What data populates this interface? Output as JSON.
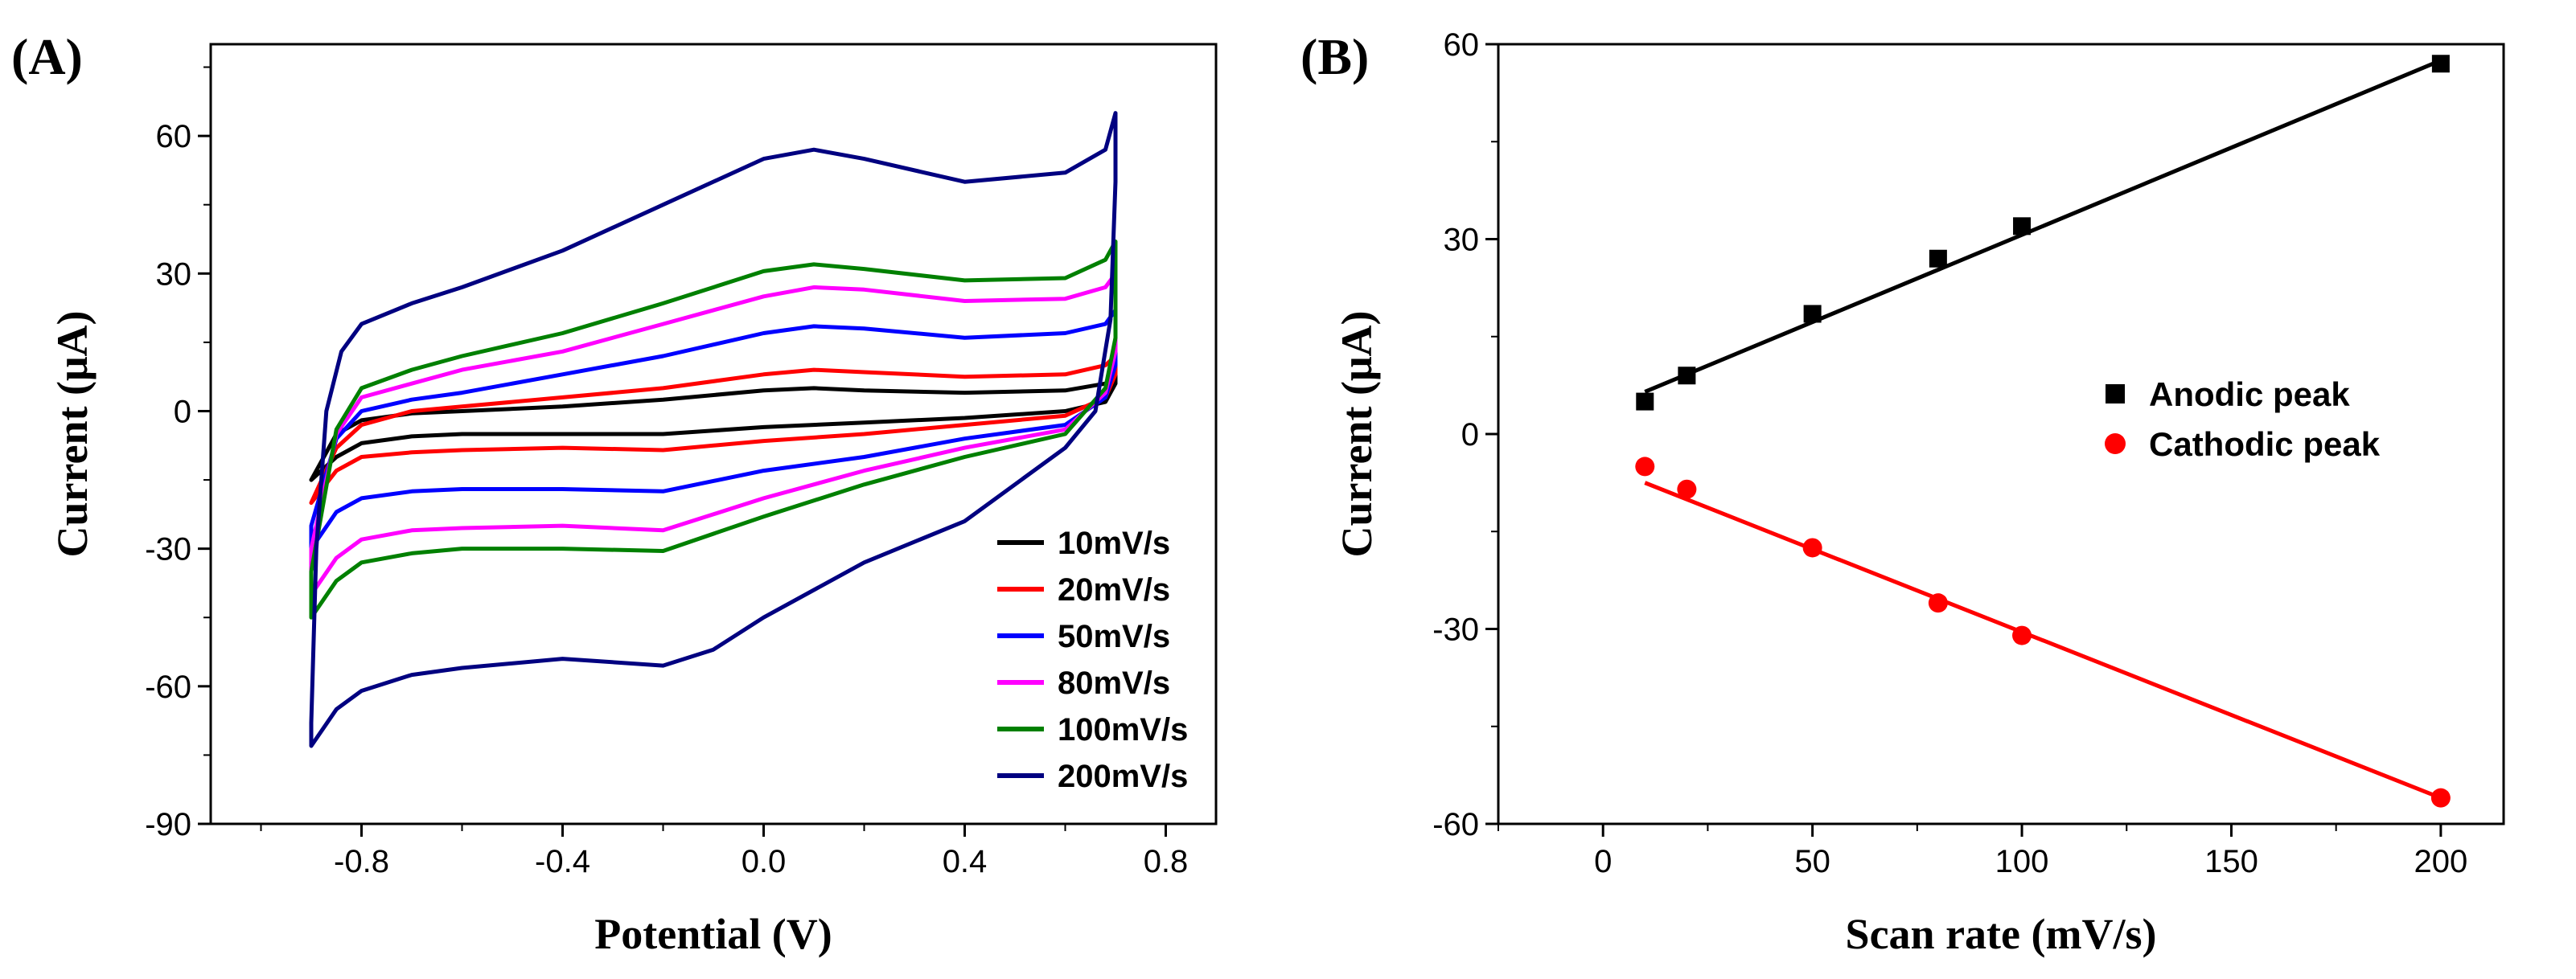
{
  "chart_data": [
    {
      "type": "line",
      "panel_label": "(A)",
      "xlabel": "Potential (V)",
      "ylabel": "Current (μA)",
      "xlim": [
        -1.1,
        0.9
      ],
      "ylim": [
        -90,
        80
      ],
      "xticks": [
        -0.8,
        -0.4,
        0.0,
        0.4,
        0.8
      ],
      "xtick_labels": [
        "-0.8",
        "-0.4",
        "0.0",
        "0.4",
        "0.8"
      ],
      "yticks": [
        -90,
        -60,
        -30,
        0,
        30,
        60
      ],
      "ytick_labels": [
        "-90",
        "-60",
        "-30",
        "0",
        "30",
        "60"
      ],
      "legend_position": "bottom-right",
      "series": [
        {
          "name": "10mV/s",
          "color": "#000000",
          "upper": [
            [
              -0.9,
              -15
            ],
            [
              -0.85,
              -5
            ],
            [
              -0.8,
              -2
            ],
            [
              -0.7,
              -0.5
            ],
            [
              -0.6,
              0
            ],
            [
              -0.4,
              1
            ],
            [
              -0.2,
              2.5
            ],
            [
              0.0,
              4.5
            ],
            [
              0.1,
              5
            ],
            [
              0.2,
              4.5
            ],
            [
              0.4,
              4
            ],
            [
              0.6,
              4.5
            ],
            [
              0.68,
              6
            ],
            [
              0.7,
              8
            ]
          ],
          "lower": [
            [
              0.7,
              6
            ],
            [
              0.68,
              2
            ],
            [
              0.6,
              0
            ],
            [
              0.4,
              -1.5
            ],
            [
              0.2,
              -2.5
            ],
            [
              0.0,
              -3.5
            ],
            [
              -0.2,
              -5
            ],
            [
              -0.4,
              -5
            ],
            [
              -0.6,
              -5
            ],
            [
              -0.7,
              -5.5
            ],
            [
              -0.8,
              -7
            ],
            [
              -0.85,
              -10
            ],
            [
              -0.9,
              -15
            ]
          ]
        },
        {
          "name": "20mV/s",
          "color": "#ff0000",
          "upper": [
            [
              -0.9,
              -20
            ],
            [
              -0.85,
              -8
            ],
            [
              -0.8,
              -3
            ],
            [
              -0.7,
              0
            ],
            [
              -0.6,
              1
            ],
            [
              -0.4,
              3
            ],
            [
              -0.2,
              5
            ],
            [
              0.0,
              8
            ],
            [
              0.1,
              9
            ],
            [
              0.2,
              8.5
            ],
            [
              0.4,
              7.5
            ],
            [
              0.6,
              8
            ],
            [
              0.68,
              10
            ],
            [
              0.7,
              12
            ]
          ],
          "lower": [
            [
              0.7,
              8
            ],
            [
              0.68,
              3
            ],
            [
              0.6,
              -1
            ],
            [
              0.4,
              -3
            ],
            [
              0.2,
              -5
            ],
            [
              0.0,
              -6.5
            ],
            [
              -0.2,
              -8.5
            ],
            [
              -0.4,
              -8
            ],
            [
              -0.6,
              -8.5
            ],
            [
              -0.7,
              -9
            ],
            [
              -0.8,
              -10
            ],
            [
              -0.85,
              -13
            ],
            [
              -0.9,
              -20
            ]
          ]
        },
        {
          "name": "50mV/s",
          "color": "#0000ff",
          "upper": [
            [
              -0.9,
              -25
            ],
            [
              -0.85,
              -6
            ],
            [
              -0.8,
              0
            ],
            [
              -0.7,
              2.5
            ],
            [
              -0.6,
              4
            ],
            [
              -0.4,
              8
            ],
            [
              -0.2,
              12
            ],
            [
              0.0,
              17
            ],
            [
              0.1,
              18.5
            ],
            [
              0.2,
              18
            ],
            [
              0.4,
              16
            ],
            [
              0.6,
              17
            ],
            [
              0.68,
              19
            ],
            [
              0.7,
              22
            ]
          ],
          "lower": [
            [
              0.7,
              10
            ],
            [
              0.68,
              3
            ],
            [
              0.6,
              -3
            ],
            [
              0.4,
              -6
            ],
            [
              0.2,
              -10
            ],
            [
              0.0,
              -13
            ],
            [
              -0.2,
              -17.5
            ],
            [
              -0.4,
              -17
            ],
            [
              -0.6,
              -17
            ],
            [
              -0.7,
              -17.5
            ],
            [
              -0.8,
              -19
            ],
            [
              -0.85,
              -22
            ],
            [
              -0.9,
              -30
            ]
          ]
        },
        {
          "name": "80mV/s",
          "color": "#ff00ff",
          "upper": [
            [
              -0.9,
              -30
            ],
            [
              -0.85,
              -5
            ],
            [
              -0.8,
              3
            ],
            [
              -0.7,
              6
            ],
            [
              -0.6,
              9
            ],
            [
              -0.4,
              13
            ],
            [
              -0.2,
              19
            ],
            [
              0.0,
              25
            ],
            [
              0.1,
              27
            ],
            [
              0.2,
              26.5
            ],
            [
              0.4,
              24
            ],
            [
              0.6,
              24.5
            ],
            [
              0.68,
              27
            ],
            [
              0.7,
              30
            ]
          ],
          "lower": [
            [
              0.7,
              13
            ],
            [
              0.68,
              4
            ],
            [
              0.6,
              -4
            ],
            [
              0.4,
              -8
            ],
            [
              0.2,
              -13
            ],
            [
              0.0,
              -19
            ],
            [
              -0.2,
              -26
            ],
            [
              -0.4,
              -25
            ],
            [
              -0.6,
              -25.5
            ],
            [
              -0.7,
              -26
            ],
            [
              -0.8,
              -28
            ],
            [
              -0.85,
              -32
            ],
            [
              -0.9,
              -40
            ]
          ]
        },
        {
          "name": "100mV/s",
          "color": "#008000",
          "upper": [
            [
              -0.9,
              -35
            ],
            [
              -0.85,
              -4
            ],
            [
              -0.8,
              5
            ],
            [
              -0.7,
              9
            ],
            [
              -0.6,
              12
            ],
            [
              -0.4,
              17
            ],
            [
              -0.2,
              23.5
            ],
            [
              0.0,
              30.5
            ],
            [
              0.1,
              32
            ],
            [
              0.2,
              31
            ],
            [
              0.4,
              28.5
            ],
            [
              0.6,
              29
            ],
            [
              0.68,
              33
            ],
            [
              0.7,
              37
            ]
          ],
          "lower": [
            [
              0.7,
              16
            ],
            [
              0.68,
              5
            ],
            [
              0.6,
              -5
            ],
            [
              0.4,
              -10
            ],
            [
              0.2,
              -16
            ],
            [
              0.0,
              -23
            ],
            [
              -0.2,
              -30.5
            ],
            [
              -0.4,
              -30
            ],
            [
              -0.6,
              -30
            ],
            [
              -0.7,
              -31
            ],
            [
              -0.8,
              -33
            ],
            [
              -0.85,
              -37
            ],
            [
              -0.9,
              -45
            ]
          ]
        },
        {
          "name": "200mV/s",
          "color": "#000080",
          "upper": [
            [
              -0.9,
              -68
            ],
            [
              -0.89,
              -30
            ],
            [
              -0.87,
              0
            ],
            [
              -0.84,
              13
            ],
            [
              -0.8,
              19
            ],
            [
              -0.7,
              23.5
            ],
            [
              -0.6,
              27
            ],
            [
              -0.4,
              35
            ],
            [
              -0.2,
              45
            ],
            [
              0.0,
              55
            ],
            [
              0.1,
              57
            ],
            [
              0.2,
              55
            ],
            [
              0.4,
              50
            ],
            [
              0.6,
              52
            ],
            [
              0.68,
              57
            ],
            [
              0.7,
              65
            ]
          ],
          "lower": [
            [
              0.7,
              50
            ],
            [
              0.69,
              20
            ],
            [
              0.66,
              0
            ],
            [
              0.6,
              -8
            ],
            [
              0.4,
              -24
            ],
            [
              0.2,
              -33
            ],
            [
              0.0,
              -45
            ],
            [
              -0.1,
              -52
            ],
            [
              -0.2,
              -55.5
            ],
            [
              -0.4,
              -54
            ],
            [
              -0.6,
              -56
            ],
            [
              -0.7,
              -57.5
            ],
            [
              -0.8,
              -61
            ],
            [
              -0.85,
              -65
            ],
            [
              -0.9,
              -73
            ]
          ]
        }
      ]
    },
    {
      "type": "scatter",
      "panel_label": "(B)",
      "xlabel": "Scan rate (mV/s)",
      "ylabel": "Current (μA)",
      "xlim": [
        -25,
        215
      ],
      "ylim": [
        -60,
        60
      ],
      "xticks": [
        0,
        50,
        100,
        150,
        200
      ],
      "xtick_labels": [
        "0",
        "50",
        "100",
        "150",
        "200"
      ],
      "yticks": [
        -60,
        -30,
        0,
        30,
        60
      ],
      "ytick_labels": [
        "-60",
        "-30",
        "0",
        "30",
        "60"
      ],
      "legend_position": "right",
      "series": [
        {
          "name": "Anodic peak",
          "color": "#000000",
          "marker": "square",
          "x": [
            10,
            20,
            50,
            80,
            100,
            200
          ],
          "y": [
            5,
            9,
            18.5,
            27,
            32,
            57
          ],
          "fit": [
            [
              10,
              6.5
            ],
            [
              200,
              57.5
            ]
          ]
        },
        {
          "name": "Cathodic peak",
          "color": "#ff0000",
          "marker": "circle",
          "x": [
            10,
            20,
            50,
            80,
            100,
            200
          ],
          "y": [
            -5,
            -8.5,
            -17.5,
            -26,
            -31,
            -56
          ],
          "fit": [
            [
              10,
              -7.5
            ],
            [
              200,
              -56
            ]
          ]
        }
      ]
    }
  ]
}
